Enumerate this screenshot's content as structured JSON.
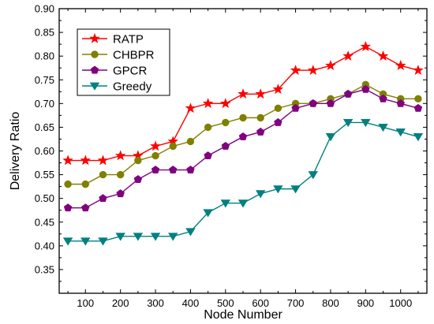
{
  "chart_data": {
    "type": "line",
    "xlabel": "Node Number",
    "ylabel": "Delivery Ratio",
    "xlim": [
      25,
      1075
    ],
    "ylim": [
      0.3,
      0.9
    ],
    "x_ticks": [
      100,
      200,
      300,
      400,
      500,
      600,
      700,
      800,
      900,
      1000
    ],
    "y_ticks": [
      0.35,
      0.4,
      0.45,
      0.5,
      0.55,
      0.6,
      0.65,
      0.7,
      0.75,
      0.8,
      0.85,
      0.9
    ],
    "legend_position": "top-left",
    "grid": false,
    "x": [
      50,
      100,
      150,
      200,
      250,
      300,
      350,
      400,
      450,
      500,
      550,
      600,
      650,
      700,
      750,
      800,
      850,
      900,
      950,
      1000,
      1050
    ],
    "series": [
      {
        "name": "RATP",
        "color": "#ff0000",
        "marker": "star",
        "values": [
          0.58,
          0.58,
          0.58,
          0.59,
          0.59,
          0.61,
          0.62,
          0.69,
          0.7,
          0.7,
          0.72,
          0.72,
          0.73,
          0.77,
          0.77,
          0.78,
          0.8,
          0.82,
          0.8,
          0.78,
          0.77
        ]
      },
      {
        "name": "CHBPR",
        "color": "#808000",
        "marker": "circle",
        "values": [
          0.53,
          0.53,
          0.55,
          0.55,
          0.58,
          0.59,
          0.61,
          0.62,
          0.65,
          0.66,
          0.67,
          0.67,
          0.69,
          0.7,
          0.7,
          0.71,
          0.72,
          0.74,
          0.72,
          0.71,
          0.71
        ]
      },
      {
        "name": "GPCR",
        "color": "#800080",
        "marker": "pentagon",
        "values": [
          0.48,
          0.48,
          0.5,
          0.51,
          0.54,
          0.56,
          0.56,
          0.56,
          0.59,
          0.61,
          0.63,
          0.64,
          0.66,
          0.69,
          0.7,
          0.7,
          0.72,
          0.73,
          0.71,
          0.7,
          0.69
        ]
      },
      {
        "name": "Greedy",
        "color": "#008080",
        "marker": "triangle-down",
        "values": [
          0.41,
          0.41,
          0.41,
          0.42,
          0.42,
          0.42,
          0.42,
          0.43,
          0.47,
          0.49,
          0.49,
          0.51,
          0.52,
          0.52,
          0.55,
          0.63,
          0.66,
          0.66,
          0.65,
          0.64,
          0.63
        ]
      }
    ]
  }
}
